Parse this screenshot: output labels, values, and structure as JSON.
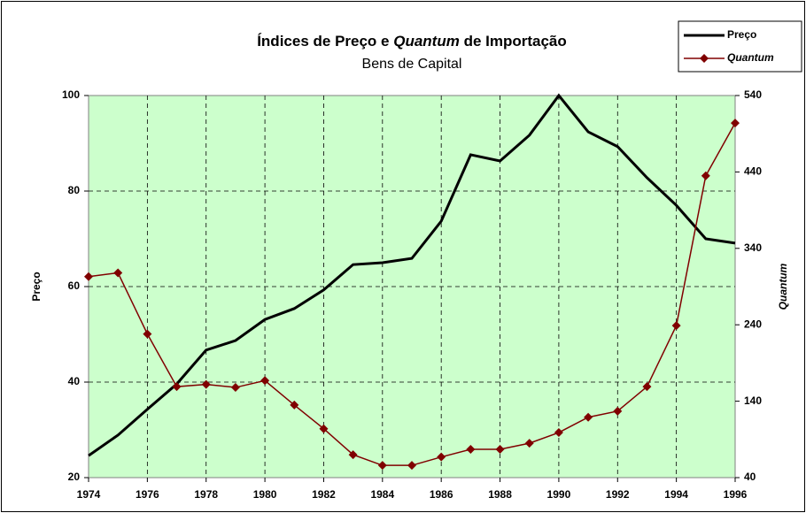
{
  "chart_data": {
    "type": "line",
    "title_parts": [
      "Índices de Preço e",
      "Quantum",
      "de Importação"
    ],
    "subtitle": "Bens de Capital",
    "y_label": "Preço",
    "y2_label": "Quantum",
    "x": [
      1974,
      1975,
      1976,
      1977,
      1978,
      1979,
      1980,
      1981,
      1982,
      1983,
      1984,
      1985,
      1986,
      1987,
      1988,
      1989,
      1990,
      1991,
      1992,
      1993,
      1994,
      1995,
      1996
    ],
    "xlim": [
      1974,
      1996
    ],
    "xticks": [
      1974,
      1976,
      1978,
      1980,
      1982,
      1984,
      1986,
      1988,
      1990,
      1992,
      1994,
      1996
    ],
    "ylim": [
      20,
      100
    ],
    "yticks": [
      20,
      40,
      60,
      80,
      100
    ],
    "y2lim": [
      40,
      540
    ],
    "y2ticks": [
      40,
      140,
      240,
      340,
      440,
      540
    ],
    "grid": true,
    "legend": "top-right",
    "series": [
      {
        "name": "Preço",
        "color": "#000000",
        "values": [
          24.6,
          28.9,
          34.3,
          39.6,
          46.7,
          48.7,
          53.1,
          55.4,
          59.3,
          64.6,
          65.0,
          65.9,
          73.7,
          87.6,
          86.3,
          91.7,
          100,
          92.4,
          89.3,
          82.8,
          77.0,
          70.0,
          69.1
        ]
      },
      {
        "name": "Quantum",
        "color": "#800000",
        "axis": "y2",
        "marker": "diamond",
        "values": [
          303,
          308,
          228,
          159,
          162,
          158,
          167,
          135,
          104,
          70,
          56,
          56,
          67,
          77,
          77,
          85,
          99,
          119,
          127,
          159,
          239,
          435,
          504
        ]
      }
    ]
  }
}
